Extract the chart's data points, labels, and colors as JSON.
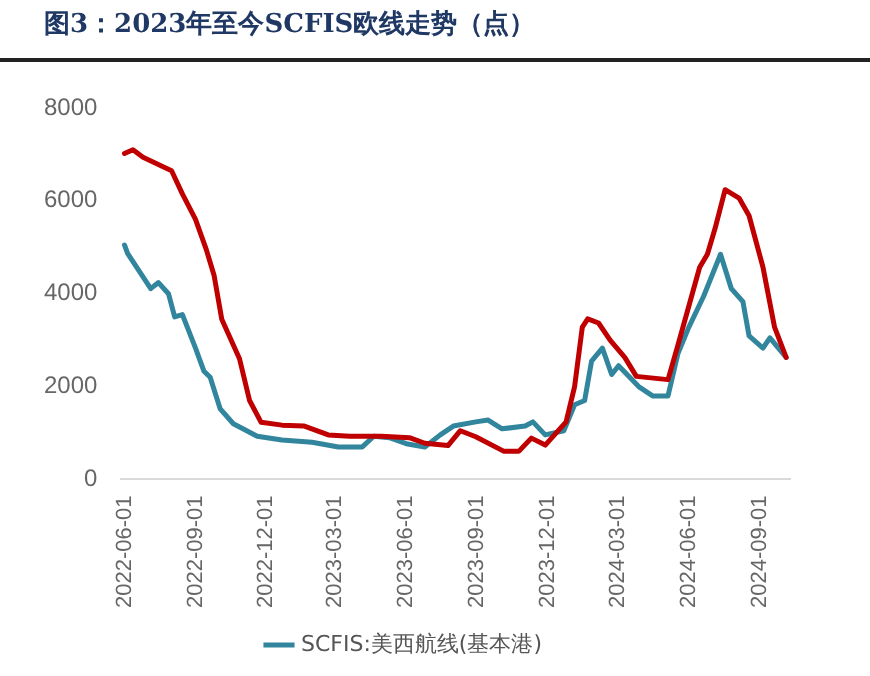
{
  "chart_data": {
    "type": "line",
    "title": "图3：2023年至今SCFIS欧线走势（点）",
    "xlim": [
      "2022-05-28",
      "2024-10-10"
    ],
    "xticks": [
      "2022-06-01",
      "2022-09-01",
      "2022-12-01",
      "2023-03-01",
      "2023-06-01",
      "2023-09-01",
      "2023-12-01",
      "2024-03-01",
      "2024-06-01",
      "2024-09-01"
    ],
    "ylim": [
      0,
      8000
    ],
    "yticks": [
      0,
      2000,
      4000,
      6000,
      8000
    ],
    "grid": false,
    "legend": "bottom",
    "marker": "none",
    "line_style": "solid",
    "series": [
      {
        "color": "#c00000",
        "x": [
          "2022-06-01",
          "2022-06-12",
          "2022-06-25",
          "2022-08-01",
          "2022-08-15",
          "2022-09-01",
          "2022-09-15",
          "2022-09-25",
          "2022-10-05",
          "2022-10-28",
          "2022-11-10",
          "2022-11-25",
          "2022-12-22",
          "2023-01-20",
          "2023-02-20",
          "2023-03-20",
          "2023-04-30",
          "2023-06-05",
          "2023-06-25",
          "2023-07-25",
          "2023-08-10",
          "2023-08-30",
          "2023-10-05",
          "2023-10-25",
          "2023-11-10",
          "2023-11-28",
          "2023-12-25",
          "2024-01-05",
          "2024-01-15",
          "2024-01-22",
          "2024-02-05",
          "2024-02-20",
          "2024-03-10",
          "2024-03-25",
          "2024-05-05",
          "2024-05-18",
          "2024-06-15",
          "2024-06-25",
          "2024-07-05",
          "2024-07-18",
          "2024-08-05",
          "2024-08-18",
          "2024-09-05",
          "2024-09-20",
          "2024-10-05"
        ],
        "values": [
          7020,
          7100,
          6940,
          6650,
          6150,
          5600,
          4950,
          4400,
          3450,
          2600,
          1700,
          1230,
          1170,
          1150,
          960,
          930,
          930,
          900,
          780,
          730,
          1050,
          920,
          610,
          610,
          890,
          740,
          1240,
          2000,
          3280,
          3460,
          3370,
          3000,
          2630,
          2220,
          2150,
          2900,
          4570,
          4850,
          5410,
          6240,
          6060,
          5680,
          4570,
          3280,
          2630
        ]
      },
      {
        "name": "SCFIS:美西航线(基本港)",
        "color": "#31859c",
        "x": [
          "2022-06-01",
          "2022-06-05",
          "2022-07-05",
          "2022-07-15",
          "2022-07-28",
          "2022-08-05",
          "2022-08-15",
          "2022-09-01",
          "2022-09-12",
          "2022-09-20",
          "2022-10-03",
          "2022-10-20",
          "2022-11-20",
          "2022-12-22",
          "2023-01-30",
          "2023-03-05",
          "2023-04-05",
          "2023-04-20",
          "2023-05-10",
          "2023-06-01",
          "2023-06-25",
          "2023-07-15",
          "2023-08-01",
          "2023-08-30",
          "2023-09-15",
          "2023-10-03",
          "2023-11-02",
          "2023-11-12",
          "2023-11-28",
          "2023-12-22",
          "2024-01-05",
          "2024-01-18",
          "2024-01-27",
          "2024-02-10",
          "2024-02-22",
          "2024-03-02",
          "2024-03-28",
          "2024-04-15",
          "2024-05-05",
          "2024-05-18",
          "2024-06-01",
          "2024-06-20",
          "2024-07-12",
          "2024-07-26",
          "2024-08-10",
          "2024-08-18",
          "2024-09-05",
          "2024-09-14",
          "2024-09-25",
          "2024-10-05"
        ],
        "values": [
          5050,
          4870,
          4110,
          4240,
          4000,
          3500,
          3550,
          2830,
          2330,
          2200,
          1520,
          1200,
          930,
          850,
          800,
          700,
          700,
          930,
          900,
          770,
          700,
          960,
          1150,
          1240,
          1280,
          1090,
          1150,
          1240,
          960,
          1050,
          1610,
          1700,
          2550,
          2830,
          2260,
          2450,
          2000,
          1800,
          1800,
          2720,
          3280,
          3940,
          4850,
          4110,
          3830,
          3090,
          2830,
          3050,
          2830,
          2630
        ]
      }
    ]
  }
}
